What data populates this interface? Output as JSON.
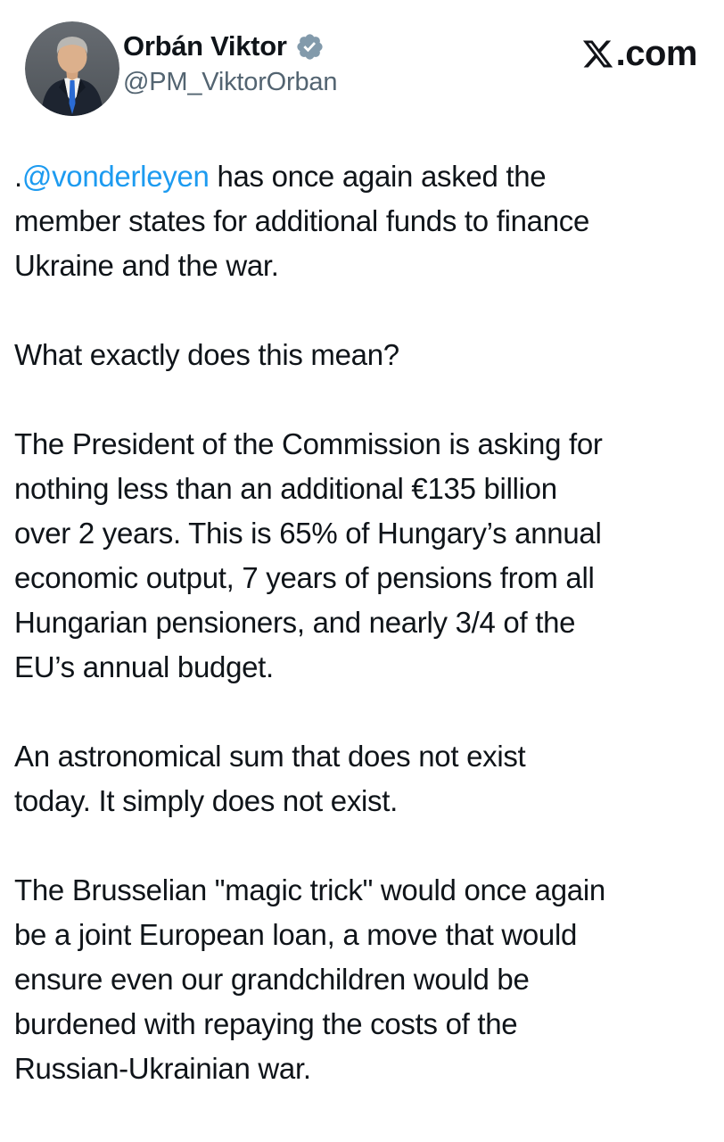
{
  "colors": {
    "background": "#ffffff",
    "text": "#0f1419",
    "secondary_text": "#536471",
    "mention_link": "#1d9bf0",
    "verified_badge": "#829aab",
    "watermark_text": "#111318"
  },
  "header": {
    "display_name": "Orbán Viktor",
    "handle": "@PM_ViktorOrban",
    "verified_badge_icon": "verified-badge-icon",
    "avatar_icon": "profile-photo",
    "watermark": {
      "logo_icon": "x-logo-icon",
      "suffix": ".com"
    }
  },
  "post": {
    "paragraphs": [
      {
        "lines": [
          [
            {
              "t": ".",
              "s": "plain"
            },
            {
              "t": "@vonderleyen",
              "s": "mention"
            },
            {
              "t": " has once again asked the",
              "s": "plain"
            }
          ],
          [
            {
              "t": "member states for additional funds to finance",
              "s": "plain"
            }
          ],
          [
            {
              "t": "Ukraine and the war.",
              "s": "plain"
            }
          ]
        ]
      },
      {
        "lines": [
          [
            {
              "t": "What exactly does this mean?",
              "s": "plain"
            }
          ]
        ]
      },
      {
        "lines": [
          [
            {
              "t": "The President of the Commission is asking for",
              "s": "plain"
            }
          ],
          [
            {
              "t": "nothing less than an additional €135 billion",
              "s": "plain"
            }
          ],
          [
            {
              "t": "over 2 years. This is 65% of Hungary’s annual",
              "s": "plain"
            }
          ],
          [
            {
              "t": "economic output, 7 years of pensions from all",
              "s": "plain"
            }
          ],
          [
            {
              "t": "Hungarian pensioners, and nearly 3/4 of the",
              "s": "plain"
            }
          ],
          [
            {
              "t": "EU’s annual budget.",
              "s": "plain"
            }
          ]
        ]
      },
      {
        "lines": [
          [
            {
              "t": "An astronomical sum that does not exist",
              "s": "plain"
            }
          ],
          [
            {
              "t": "today. It simply does not exist.",
              "s": "plain"
            }
          ]
        ]
      },
      {
        "lines": [
          [
            {
              "t": "The Brusselian \"magic trick\" would once again",
              "s": "plain"
            }
          ],
          [
            {
              "t": "be a joint European loan, a move that would",
              "s": "plain"
            }
          ],
          [
            {
              "t": "ensure even our grandchildren would be",
              "s": "plain"
            }
          ],
          [
            {
              "t": "burdened with repaying the costs of the",
              "s": "plain"
            }
          ],
          [
            {
              "t": "Russian-Ukrainian war.",
              "s": "plain"
            }
          ]
        ]
      }
    ]
  }
}
